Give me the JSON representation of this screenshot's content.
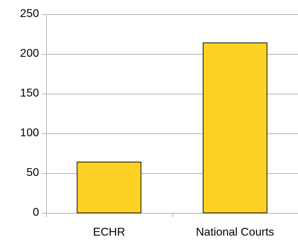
{
  "chart_data": {
    "type": "bar",
    "categories": [
      "ECHR",
      "National Courts"
    ],
    "values": [
      64,
      214
    ],
    "title": "",
    "xlabel": "",
    "ylabel": "",
    "ylim": [
      0,
      250
    ],
    "yticks": [
      0,
      50,
      100,
      150,
      200,
      250
    ],
    "grid": true,
    "legend": "none",
    "bar_color": "#FDD225",
    "bar_stroke": "#000000",
    "grid_color": "#B3B3B3"
  }
}
